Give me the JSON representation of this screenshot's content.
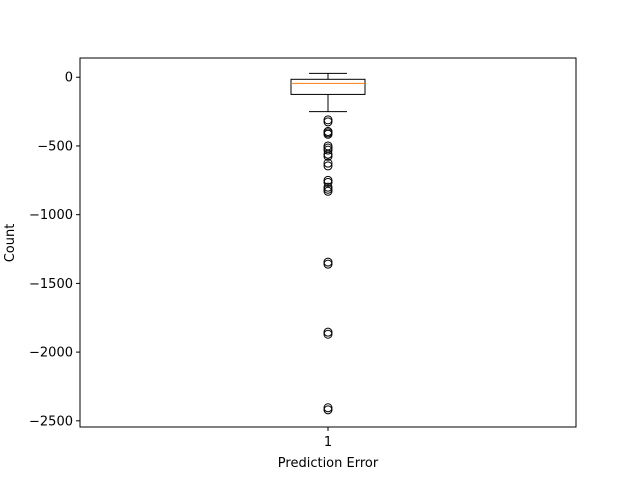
{
  "chart_data": {
    "type": "box",
    "title": "",
    "xlabel": "Prediction Error",
    "ylabel": "Count",
    "categories": [
      "1"
    ],
    "ylim": [
      -2545,
      140
    ],
    "yticks": [
      0,
      -500,
      -1000,
      -1500,
      -2000,
      -2500
    ],
    "ytick_labels": [
      "0",
      "−500",
      "−1000",
      "−1500",
      "−2000",
      "−2500"
    ],
    "grid": false,
    "box": {
      "whisker_high": 28,
      "q3": -15,
      "median": -45,
      "q1": -125,
      "whisker_low": -250
    },
    "outliers": [
      -310,
      -325,
      -395,
      -405,
      -415,
      -500,
      -515,
      -530,
      -560,
      -575,
      -625,
      -645,
      -750,
      -765,
      -800,
      -815,
      -830,
      -1345,
      -1360,
      -1855,
      -1870,
      -2405,
      -2420
    ],
    "colors": {
      "box": "#000000",
      "median": "#ff7f0e",
      "outlier": "#000000"
    }
  }
}
